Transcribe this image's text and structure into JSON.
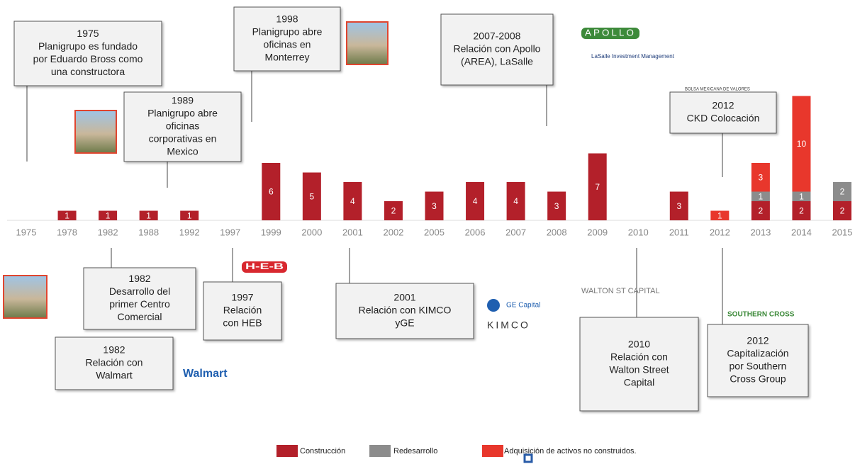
{
  "chart_data": {
    "type": "bar",
    "stacked": true,
    "categories": [
      "1975",
      "1978",
      "1982",
      "1988",
      "1992",
      "1997",
      "1999",
      "2000",
      "2001",
      "2002",
      "2005",
      "2006",
      "2007",
      "2008",
      "2009",
      "2010",
      "2011",
      "2012",
      "2013",
      "2014",
      "2015"
    ],
    "series": [
      {
        "name": "Construcción",
        "color": "#b3202a",
        "values": [
          null,
          1,
          1,
          1,
          1,
          null,
          6,
          5,
          4,
          2,
          3,
          4,
          4,
          3,
          7,
          null,
          3,
          null,
          2,
          2,
          2
        ]
      },
      {
        "name": "Redesarrollo",
        "color": "#8c8c8c",
        "values": [
          null,
          null,
          null,
          null,
          null,
          null,
          null,
          null,
          null,
          null,
          null,
          null,
          null,
          null,
          null,
          null,
          null,
          null,
          1,
          1,
          2
        ]
      },
      {
        "name": "Adquisición de activos no construidos.",
        "color": "#e8372c",
        "values": [
          null,
          null,
          null,
          null,
          null,
          null,
          null,
          null,
          null,
          null,
          null,
          null,
          null,
          null,
          null,
          null,
          null,
          1,
          3,
          10,
          null
        ]
      }
    ]
  },
  "events": [
    {
      "lines": [
        "1975",
        "Planigrupo es fundado",
        "por Eduardo Bross como",
        "una constructora"
      ]
    },
    {
      "lines": [
        "1989",
        "Planigrupo abre",
        "oficinas",
        "corporativas en",
        "Mexico"
      ]
    },
    {
      "lines": [
        "1998",
        "Planigrupo abre",
        "oficinas en",
        "Monterrey"
      ]
    },
    {
      "lines": [
        "2007-2008",
        "Relación con Apollo",
        "(AREA), LaSalle"
      ]
    },
    {
      "lines": [
        "2012",
        "CKD Colocación"
      ]
    },
    {
      "lines": [
        "1982",
        "Desarrollo del",
        "primer Centro",
        "Comercial"
      ]
    },
    {
      "lines": [
        "1982",
        "Relación con",
        "Walmart"
      ]
    },
    {
      "lines": [
        "1997",
        "Relación",
        "con HEB"
      ]
    },
    {
      "lines": [
        "2001",
        "Relación con KIMCO",
        "yGE"
      ]
    },
    {
      "lines": [
        "2010",
        "Relación con",
        "Walton Street",
        "Capital"
      ]
    },
    {
      "lines": [
        "2012",
        "Capitalización",
        "por Southern",
        "Cross Group"
      ]
    }
  ],
  "logos": [
    "APOLLO",
    "LaSalle Investment Management",
    "BOLSA MEXICANA DE VALORES",
    "H-E-B",
    "GE Capital",
    "KIMCO",
    "WALTON ST CAPITAL",
    "SOUTHERN CROSS",
    "Walmart"
  ]
}
